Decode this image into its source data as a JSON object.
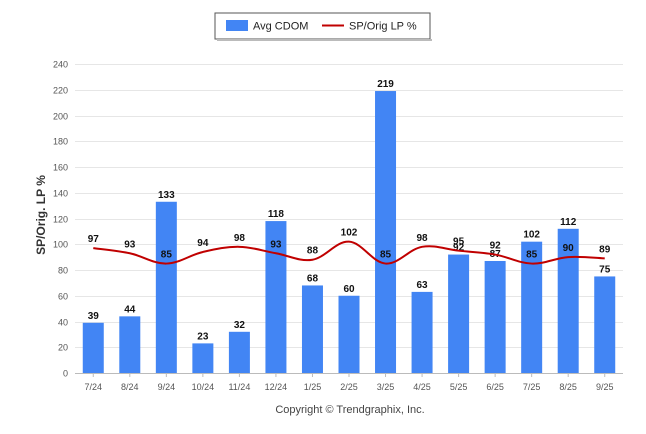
{
  "chart_data": {
    "type": "bar",
    "categories": [
      "7/24",
      "8/24",
      "9/24",
      "10/24",
      "11/24",
      "12/24",
      "1/25",
      "2/25",
      "3/25",
      "4/25",
      "5/25",
      "6/25",
      "7/25",
      "8/25",
      "9/25"
    ],
    "series": [
      {
        "name": "Avg CDOM",
        "type": "bar",
        "color": "#4285f4",
        "values": [
          39,
          44,
          133,
          23,
          32,
          118,
          68,
          60,
          219,
          63,
          92,
          87,
          102,
          112,
          75
        ]
      },
      {
        "name": "SP/Orig LP %",
        "type": "line",
        "color": "#c00000",
        "values": [
          97,
          93,
          85,
          94,
          98,
          93,
          88,
          102,
          85,
          98,
          95,
          92,
          85,
          90,
          89
        ]
      }
    ],
    "ylabel": "SP/Orig. LP %",
    "xlabel": "",
    "ylim": [
      0,
      240
    ],
    "yticks": [
      0,
      20,
      40,
      60,
      80,
      100,
      120,
      140,
      160,
      180,
      200,
      220,
      240
    ],
    "legend": "top-center",
    "grid": true,
    "footer": "Copyright © Trendgraphix, Inc."
  }
}
